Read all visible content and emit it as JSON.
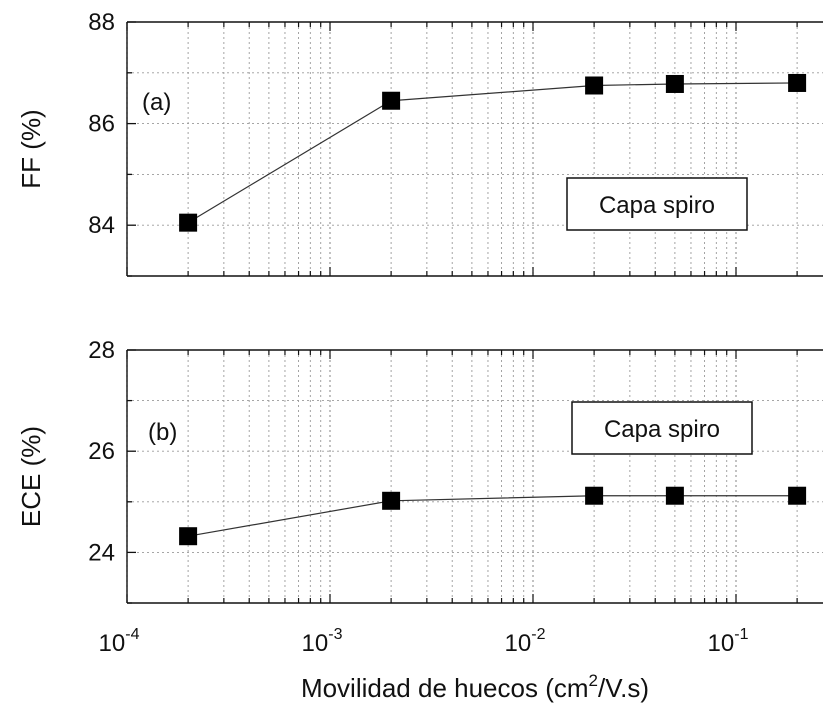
{
  "chart_data": [
    {
      "type": "line",
      "panel_label": "(a)",
      "ylabel": "FF (%)",
      "annotation": "Capa spiro",
      "x": [
        0.0002,
        0.002,
        0.02,
        0.05,
        0.2
      ],
      "series": [
        {
          "values": [
            84.05,
            86.45,
            86.75,
            86.78,
            86.8
          ]
        }
      ],
      "xscale": "log",
      "xlim": [
        0.0001,
        0.2
      ],
      "ylim": [
        83,
        88
      ],
      "yticks": [
        "84",
        "86",
        "88"
      ],
      "grid": true,
      "marker": "square",
      "color": "#000000"
    },
    {
      "type": "line",
      "panel_label": "(b)",
      "ylabel": "ECE (%)",
      "annotation": "Capa spiro",
      "x": [
        0.0002,
        0.002,
        0.02,
        0.05,
        0.2
      ],
      "series": [
        {
          "values": [
            24.32,
            25.02,
            25.12,
            25.12,
            25.12
          ]
        }
      ],
      "xscale": "log",
      "xlim": [
        0.0001,
        0.2
      ],
      "ylim": [
        23,
        28
      ],
      "yticks": [
        "24",
        "26",
        "28"
      ],
      "grid": true,
      "marker": "square",
      "color": "#000000"
    }
  ],
  "shared_x": {
    "xlabel_main": "Movilidad de huecos (cm",
    "xlabel_sup": "2",
    "xlabel_tail": "/V.s)",
    "ticks": [
      {
        "base": "10",
        "exp": "-4",
        "value": 0.0001
      },
      {
        "base": "10",
        "exp": "-3",
        "value": 0.001
      },
      {
        "base": "10",
        "exp": "-2",
        "value": 0.01
      },
      {
        "base": "10",
        "exp": "-1",
        "value": 0.1
      }
    ]
  }
}
